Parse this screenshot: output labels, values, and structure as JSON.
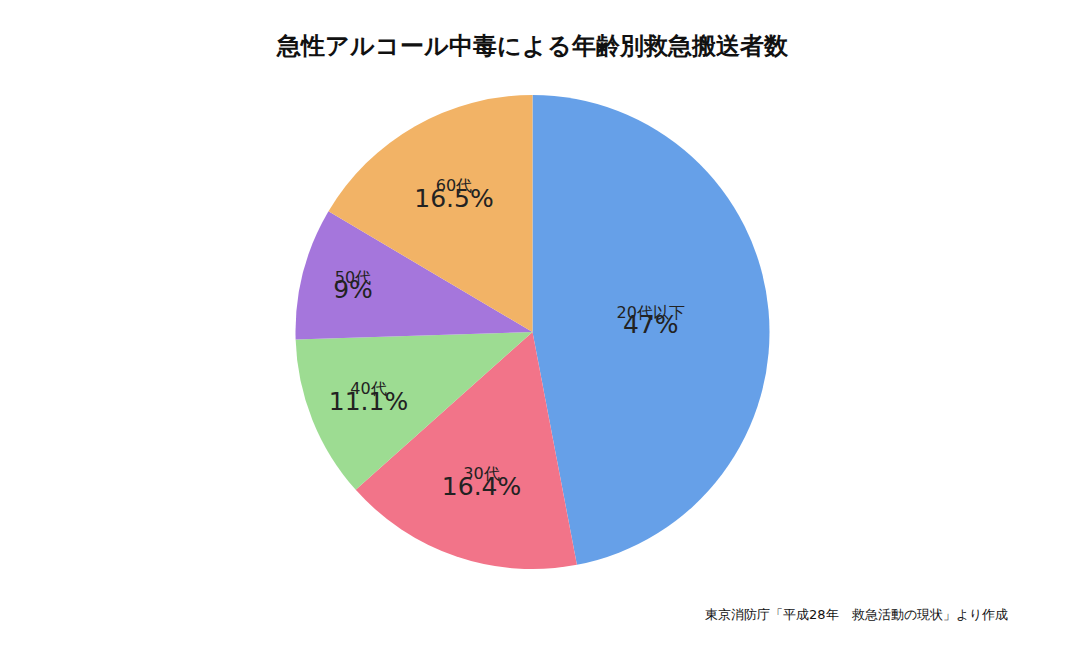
{
  "chart_data": {
    "type": "pie",
    "title": "急性アルコール中毒による年齢別救急搬送者数",
    "categories": [
      "20代以下",
      "30代",
      "40代",
      "50代",
      "60代"
    ],
    "values": [
      47,
      16.4,
      11.1,
      9,
      16.5
    ],
    "value_labels": [
      "47%",
      "16.4%",
      "11.1%",
      "9%",
      "16.5%"
    ],
    "colors": [
      "#66a0e8",
      "#f27489",
      "#9ddc92",
      "#a576dc",
      "#f2b366"
    ],
    "data_labels": true,
    "annotations": [
      "東京消防庁「平成28年　救急活動の現状」より作成"
    ]
  }
}
